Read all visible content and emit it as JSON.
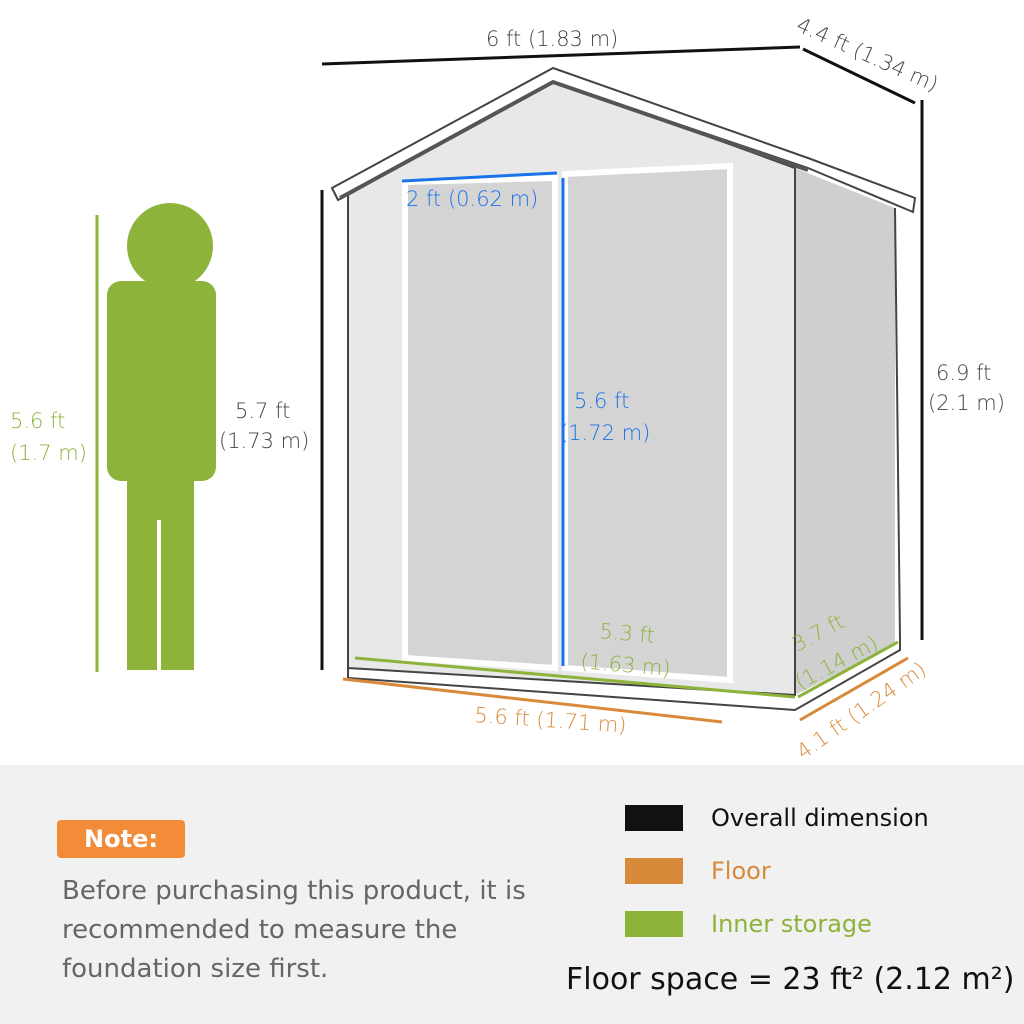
{
  "colors": {
    "overall": "#111111",
    "floor": "#d9893a",
    "inner": "#8db33a",
    "door": "#1a73e8",
    "note": "#f28c38"
  },
  "person": {
    "height": "5.6 ft",
    "height_m": "(1.7 m)"
  },
  "shed": {
    "width_top": "6 ft (1.83 m)",
    "depth_top": "4.4 ft (1.34 m)",
    "wall_height": "5.7 ft",
    "wall_height_m": "(1.73 m)",
    "peak_height": "6.9 ft",
    "peak_height_m": "(2.1 m)",
    "door_width": "2 ft (0.62 m)",
    "door_height": "5.6 ft",
    "door_height_m": "(1.72 m)",
    "inner_width": "5.3 ft",
    "inner_width_m": "(1.63 m)",
    "inner_depth": "3.7 ft",
    "inner_depth_m": "(1.14 m)",
    "floor_width": "5.6 ft (1.71 m)",
    "floor_depth": "4.1 ft (1.24 m)"
  },
  "note": {
    "badge": "Note:",
    "text": "Before purchasing this product, it is recommended to measure the foundation size first."
  },
  "legend": [
    {
      "label": "Overall dimension"
    },
    {
      "label": "Floor"
    },
    {
      "label": "Inner storage"
    }
  ],
  "floor_space": "Floor space = 23 ft² (2.12 m²)"
}
